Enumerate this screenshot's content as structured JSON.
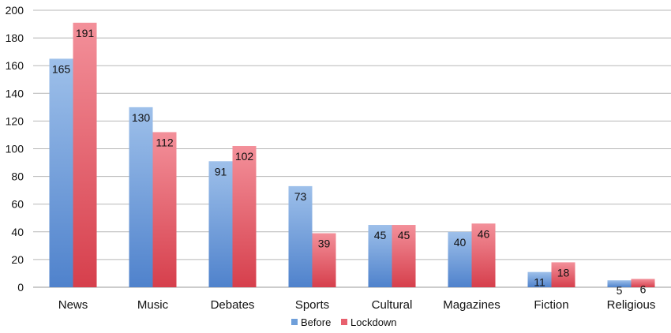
{
  "chart_data": {
    "type": "bar",
    "title": "",
    "xlabel": "",
    "ylabel": "",
    "ylim": [
      0,
      200
    ],
    "y_ticks": [
      0,
      20,
      40,
      60,
      80,
      100,
      120,
      140,
      160,
      180,
      200
    ],
    "grid": true,
    "legend_position": "bottom",
    "categories": [
      "News",
      "Music",
      "Debates",
      "Sports",
      "Cultural",
      "Magazines",
      "Fiction",
      "Religious"
    ],
    "series": [
      {
        "name": "Before",
        "color": "#6f9fda",
        "values": [
          165,
          130,
          91,
          73,
          45,
          40,
          11,
          5
        ]
      },
      {
        "name": "Lockdown",
        "color": "#e8606e",
        "values": [
          191,
          112,
          102,
          39,
          45,
          46,
          18,
          6
        ]
      }
    ]
  }
}
